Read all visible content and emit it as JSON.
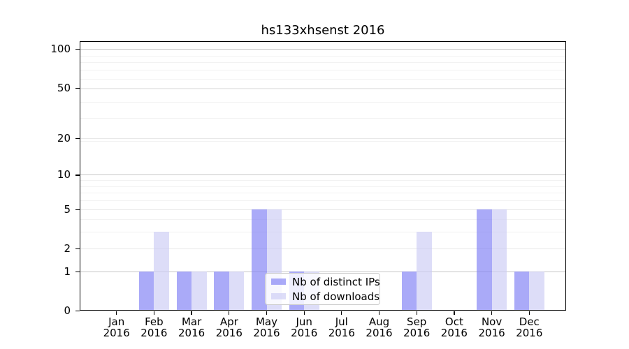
{
  "title": "hs133xhsenst 2016",
  "colors": {
    "bar_ips": "rgba(124,124,245,0.65)",
    "bar_downloads": "rgba(203,203,245,0.65)",
    "grid_major": "#c6c6c6",
    "grid_mid": "#e8e8e8",
    "grid_minor": "#f2f2f2",
    "axis": "#000000"
  },
  "legend": {
    "items": [
      {
        "label": "Nb of distinct IPs",
        "color_key": "bar_ips"
      },
      {
        "label": "Nb of downloads",
        "color_key": "bar_downloads"
      }
    ]
  },
  "chart_data": {
    "type": "bar",
    "title": "hs133xhsenst 2016",
    "categories": [
      "Jan 2016",
      "Feb 2016",
      "Mar 2016",
      "Apr 2016",
      "May 2016",
      "Jun 2016",
      "Jul 2016",
      "Aug 2016",
      "Sep 2016",
      "Oct 2016",
      "Nov 2016",
      "Dec 2016"
    ],
    "month_labels": [
      "Jan",
      "Feb",
      "Mar",
      "Apr",
      "May",
      "Jun",
      "Jul",
      "Aug",
      "Sep",
      "Oct",
      "Nov",
      "Dec"
    ],
    "year": "2016",
    "series": [
      {
        "name": "Nb of distinct IPs",
        "values": [
          0,
          1,
          1,
          1,
          5,
          1,
          0,
          0,
          1,
          0,
          5,
          1
        ]
      },
      {
        "name": "Nb of downloads",
        "values": [
          0,
          3,
          1,
          1,
          5,
          1,
          0,
          0,
          3,
          0,
          5,
          1
        ]
      }
    ],
    "ylabel": "",
    "xlabel": "",
    "yscale": "log1p",
    "ylim": [
      0,
      115
    ],
    "y_ticks": [
      0,
      1,
      2,
      5,
      10,
      20,
      50,
      100
    ],
    "y_major_gridlines": [
      1,
      10,
      100
    ],
    "y_mid_gridlines": [
      2,
      5,
      20,
      50
    ],
    "y_minor_gridlines": [
      3,
      4,
      6,
      7,
      8,
      9,
      19,
      29,
      39,
      49,
      59,
      69,
      79,
      89
    ],
    "grid": true,
    "legend_position": "inside lower center"
  }
}
